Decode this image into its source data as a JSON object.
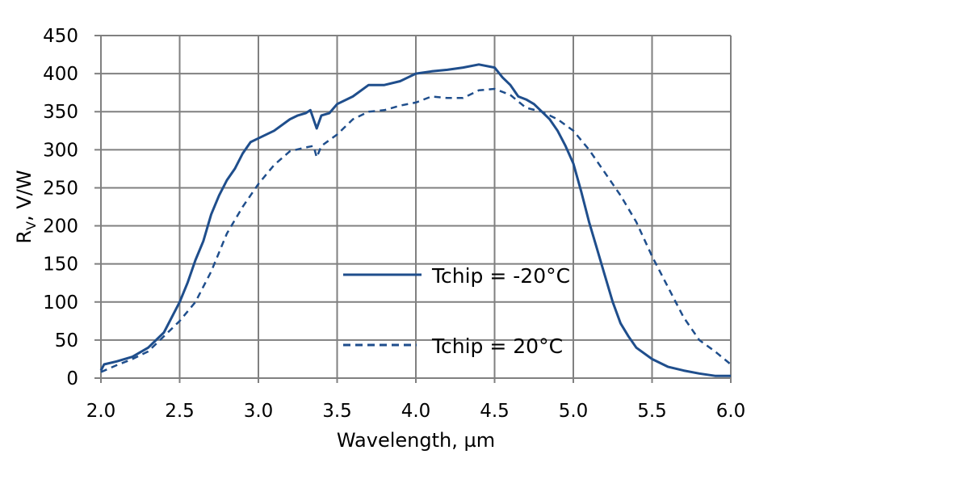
{
  "chart_data": {
    "type": "line",
    "title": "",
    "xlabel": "Wavelength, µm",
    "ylabel_main": "R",
    "ylabel_sub": "V",
    "ylabel_rest": ", V/W",
    "xlim": [
      2.0,
      6.0
    ],
    "ylim": [
      0,
      450
    ],
    "xticks": [
      "2.0",
      "2.5",
      "3.0",
      "3.5",
      "4.0",
      "4.5",
      "5.0",
      "5.5",
      "6.0"
    ],
    "yticks": [
      "0",
      "50",
      "100",
      "150",
      "200",
      "250",
      "300",
      "350",
      "400",
      "450"
    ],
    "grid": true,
    "legend_placement": "center",
    "color": "#1f4e8c",
    "series": [
      {
        "name": "Tchip = -20°C",
        "style": "solid",
        "x": [
          2.0,
          2.02,
          2.1,
          2.2,
          2.3,
          2.4,
          2.5,
          2.55,
          2.6,
          2.65,
          2.7,
          2.75,
          2.8,
          2.85,
          2.9,
          2.95,
          3.0,
          3.1,
          3.2,
          3.25,
          3.3,
          3.33,
          3.37,
          3.4,
          3.45,
          3.5,
          3.6,
          3.7,
          3.8,
          3.9,
          4.0,
          4.1,
          4.2,
          4.3,
          4.4,
          4.5,
          4.55,
          4.6,
          4.65,
          4.7,
          4.75,
          4.8,
          4.85,
          4.9,
          4.95,
          5.0,
          5.05,
          5.1,
          5.15,
          5.2,
          5.25,
          5.3,
          5.35,
          5.4,
          5.5,
          5.6,
          5.7,
          5.8,
          5.9,
          6.0
        ],
        "y": [
          10,
          18,
          22,
          28,
          40,
          60,
          100,
          125,
          155,
          180,
          215,
          240,
          260,
          275,
          295,
          310,
          315,
          325,
          340,
          345,
          348,
          352,
          328,
          345,
          348,
          360,
          370,
          385,
          385,
          390,
          400,
          403,
          405,
          408,
          412,
          408,
          395,
          385,
          370,
          366,
          360,
          350,
          340,
          325,
          305,
          282,
          245,
          205,
          170,
          135,
          100,
          72,
          55,
          40,
          25,
          15,
          10,
          6,
          3,
          3
        ]
      },
      {
        "name": "Tchip = 20°C",
        "style": "dashed",
        "x": [
          2.0,
          2.1,
          2.2,
          2.3,
          2.4,
          2.5,
          2.6,
          2.7,
          2.8,
          2.9,
          3.0,
          3.1,
          3.2,
          3.3,
          3.35,
          3.37,
          3.4,
          3.5,
          3.6,
          3.7,
          3.8,
          3.9,
          4.0,
          4.1,
          4.2,
          4.3,
          4.4,
          4.5,
          4.6,
          4.7,
          4.8,
          4.9,
          5.0,
          5.1,
          5.2,
          5.3,
          5.4,
          5.5,
          5.6,
          5.7,
          5.8,
          5.9,
          6.0
        ],
        "y": [
          8,
          17,
          25,
          35,
          55,
          75,
          100,
          140,
          190,
          225,
          255,
          280,
          298,
          303,
          305,
          290,
          305,
          320,
          340,
          350,
          352,
          358,
          362,
          370,
          368,
          368,
          378,
          380,
          372,
          355,
          350,
          340,
          325,
          300,
          270,
          240,
          205,
          160,
          120,
          80,
          50,
          35,
          18
        ]
      }
    ]
  }
}
